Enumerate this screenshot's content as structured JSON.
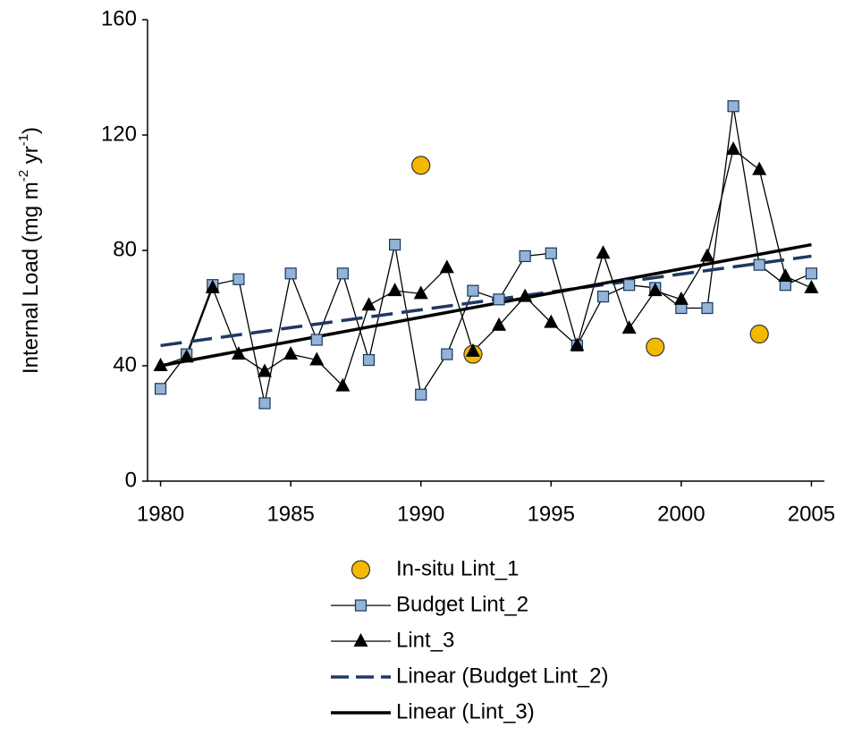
{
  "chart_data": {
    "type": "line",
    "y_label": [
      "Internal Load (mg m",
      "-2",
      " yr",
      "-1",
      ")"
    ],
    "xlim": [
      1979.5,
      2005.5
    ],
    "xticks": [
      1980,
      1985,
      1990,
      1995,
      2000,
      2005
    ],
    "ylim": [
      0,
      160
    ],
    "yticks": [
      0,
      40,
      80,
      120,
      160
    ],
    "series": [
      {
        "name": "In-situ Lint_1",
        "color": "#f5b800",
        "marker": "circle",
        "line": "none",
        "x": [
          1990,
          1992,
          1999,
          2003
        ],
        "values": [
          109.5,
          44,
          46.5,
          51
        ]
      },
      {
        "name": "Budget Lint_2",
        "color": "#95b3d7",
        "marker": "square",
        "line": "thin",
        "x": [
          1980,
          1981,
          1982,
          1983,
          1984,
          1985,
          1986,
          1987,
          1988,
          1989,
          1990,
          1991,
          1992,
          1993,
          1994,
          1995,
          1996,
          1997,
          1998,
          1999,
          2000,
          2001,
          2002,
          2003,
          2004,
          2005
        ],
        "values": [
          32,
          44,
          68,
          70,
          27,
          72,
          49,
          72,
          42,
          82,
          30,
          44,
          66,
          63,
          78,
          79,
          47,
          64,
          68,
          67,
          60,
          60,
          130,
          75,
          68,
          72
        ]
      },
      {
        "name": "Lint_3",
        "color": "#000000",
        "marker": "triangle",
        "line": "thin",
        "x": [
          1980,
          1981,
          1982,
          1983,
          1984,
          1985,
          1986,
          1987,
          1988,
          1989,
          1990,
          1991,
          1992,
          1993,
          1994,
          1995,
          1996,
          1997,
          1998,
          1999,
          2000,
          2001,
          2002,
          2003,
          2004,
          2005
        ],
        "values": [
          40,
          43,
          67,
          44,
          38,
          44,
          42,
          33,
          61,
          66,
          65,
          74,
          45,
          54,
          64,
          55,
          47,
          79,
          53,
          66,
          63,
          78,
          115,
          108,
          71,
          67
        ]
      },
      {
        "name": "Linear (Budget Lint_2)",
        "color": "#1f3864",
        "marker": null,
        "line": "dashed",
        "x": [
          1980,
          2005
        ],
        "values": [
          47,
          78
        ]
      },
      {
        "name": "Linear (Lint_3)",
        "color": "#000000",
        "marker": null,
        "line": "thick",
        "x": [
          1980,
          2005
        ],
        "values": [
          40,
          82
        ]
      }
    ]
  }
}
